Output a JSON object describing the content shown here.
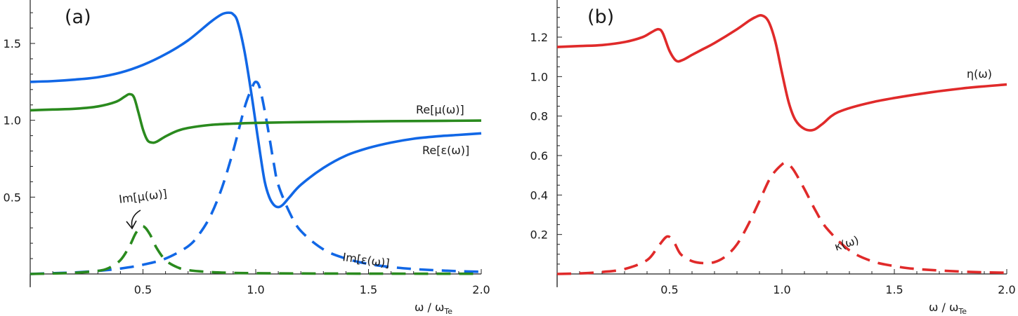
{
  "chart_data": [
    {
      "type": "line",
      "panel_label": "(a)",
      "xlabel": "ω / ω",
      "xlabel_sub": "Te",
      "xlim": [
        0,
        2.0
      ],
      "ylim": [
        -0.05,
        1.8
      ],
      "xticks": [
        0.5,
        1.0,
        1.5,
        2.0
      ],
      "xtick_labels": [
        "0.5",
        "1.0",
        "1.5",
        "2.0"
      ],
      "yticks": [
        0.5,
        1.0,
        1.5
      ],
      "ytick_labels": [
        "0.5",
        "1.0",
        "1.5"
      ],
      "grid": false,
      "series": [
        {
          "name": "Re[ε(ω)]",
          "color": "#1167e6",
          "dash": false,
          "x": [
            0,
            0.1,
            0.2,
            0.3,
            0.4,
            0.5,
            0.6,
            0.7,
            0.8,
            0.85,
            0.88,
            0.9,
            0.92,
            0.95,
            0.98,
            1.0,
            1.02,
            1.04,
            1.06,
            1.08,
            1.1,
            1.12,
            1.15,
            1.2,
            1.3,
            1.4,
            1.5,
            1.6,
            1.7,
            1.8,
            1.9,
            2.0
          ],
          "y": [
            1.25,
            1.255,
            1.265,
            1.28,
            1.31,
            1.36,
            1.43,
            1.52,
            1.64,
            1.69,
            1.7,
            1.69,
            1.64,
            1.45,
            1.18,
            0.98,
            0.78,
            0.6,
            0.5,
            0.45,
            0.435,
            0.45,
            0.5,
            0.58,
            0.69,
            0.77,
            0.82,
            0.855,
            0.88,
            0.895,
            0.905,
            0.915
          ]
        },
        {
          "name": "Re[μ(ω)]",
          "color": "#2a8a1e",
          "dash": false,
          "x": [
            0,
            0.1,
            0.2,
            0.3,
            0.38,
            0.42,
            0.44,
            0.46,
            0.48,
            0.5,
            0.52,
            0.54,
            0.56,
            0.6,
            0.65,
            0.7,
            0.8,
            0.9,
            1.0,
            1.2,
            1.4,
            1.6,
            1.8,
            2.0
          ],
          "y": [
            1.065,
            1.07,
            1.075,
            1.09,
            1.12,
            1.155,
            1.17,
            1.15,
            1.05,
            0.94,
            0.87,
            0.855,
            0.86,
            0.895,
            0.93,
            0.95,
            0.97,
            0.978,
            0.983,
            0.988,
            0.991,
            0.994,
            0.996,
            0.998
          ]
        },
        {
          "name": "Im[ε(ω)]",
          "color": "#1167e6",
          "dash": true,
          "x": [
            0,
            0.1,
            0.2,
            0.3,
            0.4,
            0.5,
            0.6,
            0.7,
            0.75,
            0.8,
            0.85,
            0.9,
            0.95,
            0.98,
            1.0,
            1.02,
            1.05,
            1.08,
            1.1,
            1.15,
            1.2,
            1.3,
            1.4,
            1.5,
            1.6,
            1.7,
            1.8,
            1.9,
            2.0
          ],
          "y": [
            0.0,
            0.005,
            0.01,
            0.02,
            0.035,
            0.06,
            0.1,
            0.18,
            0.26,
            0.38,
            0.56,
            0.8,
            1.08,
            1.2,
            1.25,
            1.2,
            0.98,
            0.72,
            0.58,
            0.4,
            0.28,
            0.16,
            0.1,
            0.065,
            0.045,
            0.032,
            0.024,
            0.018,
            0.014
          ]
        },
        {
          "name": "Im[μ(ω)]",
          "color": "#2a8a1e",
          "dash": true,
          "x": [
            0,
            0.1,
            0.2,
            0.3,
            0.35,
            0.4,
            0.44,
            0.47,
            0.5,
            0.53,
            0.56,
            0.6,
            0.65,
            0.7,
            0.8,
            0.9,
            1.0,
            1.2,
            1.5,
            1.8,
            2.0
          ],
          "y": [
            0.0,
            0.003,
            0.008,
            0.02,
            0.04,
            0.09,
            0.18,
            0.27,
            0.31,
            0.26,
            0.17,
            0.09,
            0.045,
            0.025,
            0.012,
            0.007,
            0.005,
            0.003,
            0.002,
            0.0015,
            0.001
          ]
        }
      ],
      "annotations": [
        {
          "text": "Re[μ(ω)]",
          "series": "Re[μ(ω)]"
        },
        {
          "text": "Re[ε(ω)]",
          "series": "Re[ε(ω)]"
        },
        {
          "text": "Im[μ(ω)]",
          "series": "Im[μ(ω)]"
        },
        {
          "text": "Im[ε(ω)]",
          "series": "Im[ε(ω)]"
        }
      ]
    },
    {
      "type": "line",
      "panel_label": "(b)",
      "xlabel": "ω / ω",
      "xlabel_sub": "Te",
      "xlim": [
        0,
        2.0
      ],
      "ylim": [
        -0.02,
        1.4
      ],
      "xticks": [
        0.5,
        1.0,
        1.5,
        2.0
      ],
      "xtick_labels": [
        "0.5",
        "1.0",
        "1.5",
        "2.0"
      ],
      "yticks": [
        0.2,
        0.4,
        0.6,
        0.8,
        1.0,
        1.2
      ],
      "ytick_labels": [
        "0.2",
        "0.4",
        "0.6",
        "0.8",
        "1.0",
        "1.2"
      ],
      "grid": false,
      "series": [
        {
          "name": "η(ω)",
          "color": "#e02a2a",
          "dash": false,
          "x": [
            0,
            0.1,
            0.2,
            0.3,
            0.38,
            0.42,
            0.45,
            0.47,
            0.5,
            0.53,
            0.56,
            0.6,
            0.65,
            0.7,
            0.8,
            0.85,
            0.88,
            0.91,
            0.94,
            0.97,
            1.0,
            1.03,
            1.06,
            1.1,
            1.14,
            1.18,
            1.25,
            1.4,
            1.6,
            1.8,
            2.0
          ],
          "y": [
            1.15,
            1.155,
            1.16,
            1.175,
            1.2,
            1.225,
            1.24,
            1.22,
            1.13,
            1.08,
            1.085,
            1.11,
            1.14,
            1.17,
            1.24,
            1.28,
            1.3,
            1.31,
            1.28,
            1.18,
            1.02,
            0.87,
            0.78,
            0.735,
            0.73,
            0.76,
            0.82,
            0.87,
            0.91,
            0.94,
            0.96
          ]
        },
        {
          "name": "κ(ω)",
          "color": "#e02a2a",
          "dash": true,
          "x": [
            0,
            0.1,
            0.2,
            0.3,
            0.4,
            0.45,
            0.49,
            0.52,
            0.55,
            0.6,
            0.65,
            0.7,
            0.75,
            0.8,
            0.85,
            0.9,
            0.95,
            1.0,
            1.02,
            1.05,
            1.1,
            1.15,
            1.2,
            1.3,
            1.4,
            1.5,
            1.6,
            1.8,
            2.0
          ],
          "y": [
            0.0,
            0.003,
            0.01,
            0.025,
            0.07,
            0.14,
            0.19,
            0.16,
            0.1,
            0.065,
            0.055,
            0.06,
            0.09,
            0.15,
            0.25,
            0.37,
            0.49,
            0.555,
            0.56,
            0.53,
            0.43,
            0.32,
            0.23,
            0.12,
            0.065,
            0.04,
            0.025,
            0.012,
            0.006
          ]
        }
      ],
      "annotations": [
        {
          "text": "η(ω)",
          "series": "η(ω)"
        },
        {
          "text": "κ(ω)",
          "series": "κ(ω)"
        }
      ]
    }
  ]
}
